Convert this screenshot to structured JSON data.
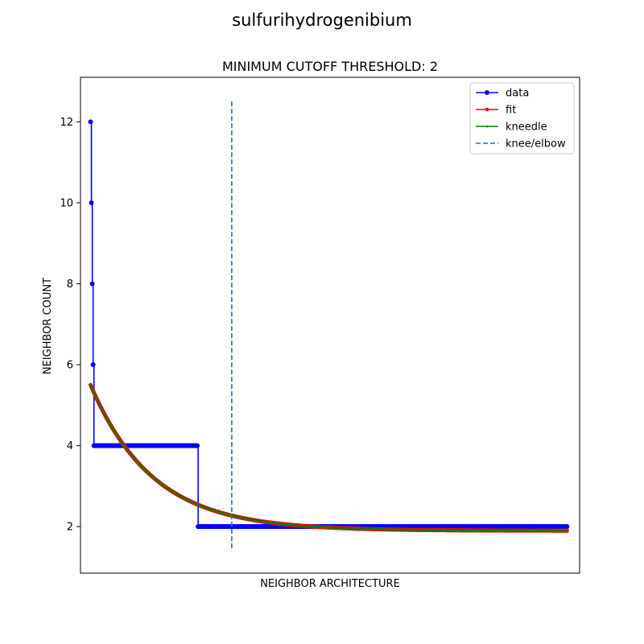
{
  "suptitle": "sulfurihydrogenibium",
  "chart_data": {
    "type": "line",
    "title": "MINIMUM CUTOFF THRESHOLD: 2",
    "xlabel": "NEIGHBOR ARCHITECTURE",
    "ylabel": "NEIGHBOR COUNT",
    "xlim": [
      -12,
      582
    ],
    "ylim": [
      0.85,
      13.1
    ],
    "x_ticks_visible": false,
    "y_ticks": [
      2,
      4,
      6,
      8,
      10,
      12
    ],
    "grid": false,
    "legend_position": "top-right",
    "series": [
      {
        "name": "data",
        "color": "#0000ff",
        "marker": "circle",
        "style": "solid",
        "steps": [
          {
            "x_start": 0,
            "x_end": 0,
            "y": 12
          },
          {
            "x_start": 1,
            "x_end": 1,
            "y": 10
          },
          {
            "x_start": 2,
            "x_end": 2,
            "y": 8
          },
          {
            "x_start": 3,
            "x_end": 3,
            "y": 6
          },
          {
            "x_start": 4,
            "x_end": 127,
            "y": 4
          },
          {
            "x_start": 128,
            "x_end": 567,
            "y": 2
          }
        ]
      },
      {
        "name": "fit",
        "color": "#ff0000",
        "marker": "dot",
        "style": "solid",
        "model": {
          "a": 1.9,
          "b": 3.6,
          "k": 0.0135
        },
        "x_range": [
          0,
          567
        ]
      },
      {
        "name": "kneedle",
        "color": "#008000",
        "marker": "small-dot",
        "style": "solid",
        "model": {
          "a": 1.9,
          "b": 3.6,
          "k": 0.0135
        },
        "x_range": [
          0,
          567
        ]
      },
      {
        "name": "knee/elbow",
        "color": "#1f77b4",
        "style": "dashed",
        "x": 168,
        "y_range": [
          1.4,
          12.5
        ]
      }
    ]
  }
}
